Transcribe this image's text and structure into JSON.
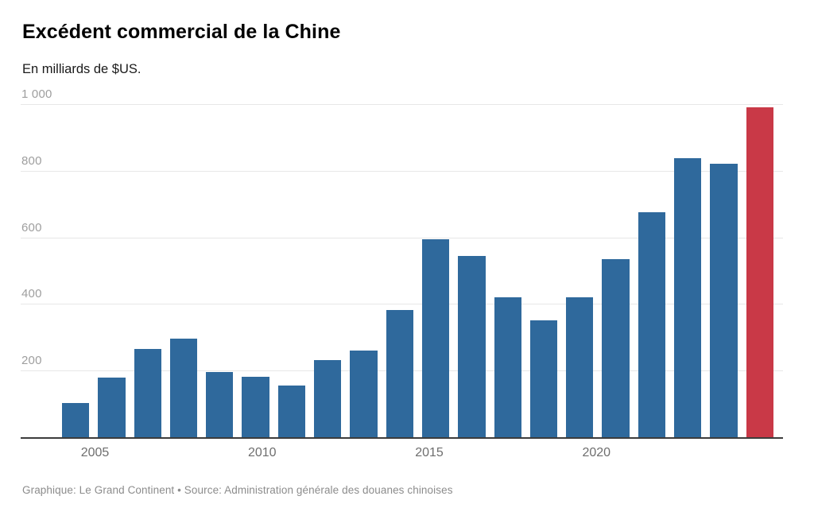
{
  "header": {
    "title": "Excédent commercial de la Chine",
    "subtitle": "En milliards de $US."
  },
  "footer": {
    "credit": "Graphique: Le Grand Continent • Source: Administration générale des douanes chinoises"
  },
  "chart_data": {
    "type": "bar",
    "title": "Excédent commercial de la Chine",
    "subtitle": "En milliards de $US.",
    "categories": [
      "2005",
      "2006",
      "2007",
      "2008",
      "2009",
      "2010",
      "2011",
      "2012",
      "2013",
      "2014",
      "2015",
      "2016",
      "2017",
      "2018",
      "2019",
      "2020",
      "2021",
      "2022",
      "2023",
      "2024"
    ],
    "values": [
      102,
      178,
      264,
      297,
      196,
      182,
      155,
      231,
      259,
      381,
      594,
      544,
      420,
      351,
      421,
      535,
      676,
      838,
      822,
      990
    ],
    "highlight_index": 19,
    "colors": {
      "bar": "#2f699c",
      "highlight": "#c93947",
      "gridline": "#e7e7e7",
      "axis_line": "#3c3c3c",
      "ytick_text": "#9e9e9e",
      "xtick_text": "#6e6e6e"
    },
    "xlabel": "",
    "ylabel": "",
    "ylim": [
      0,
      1000
    ],
    "ytick_values": [
      1000,
      800,
      600,
      400,
      200
    ],
    "ytick_labels": [
      "1 000",
      "800",
      "600",
      "400",
      "200"
    ],
    "xtick_labels": [
      "2005",
      "2010",
      "2015",
      "2020"
    ],
    "grid": true,
    "legend": "none"
  }
}
